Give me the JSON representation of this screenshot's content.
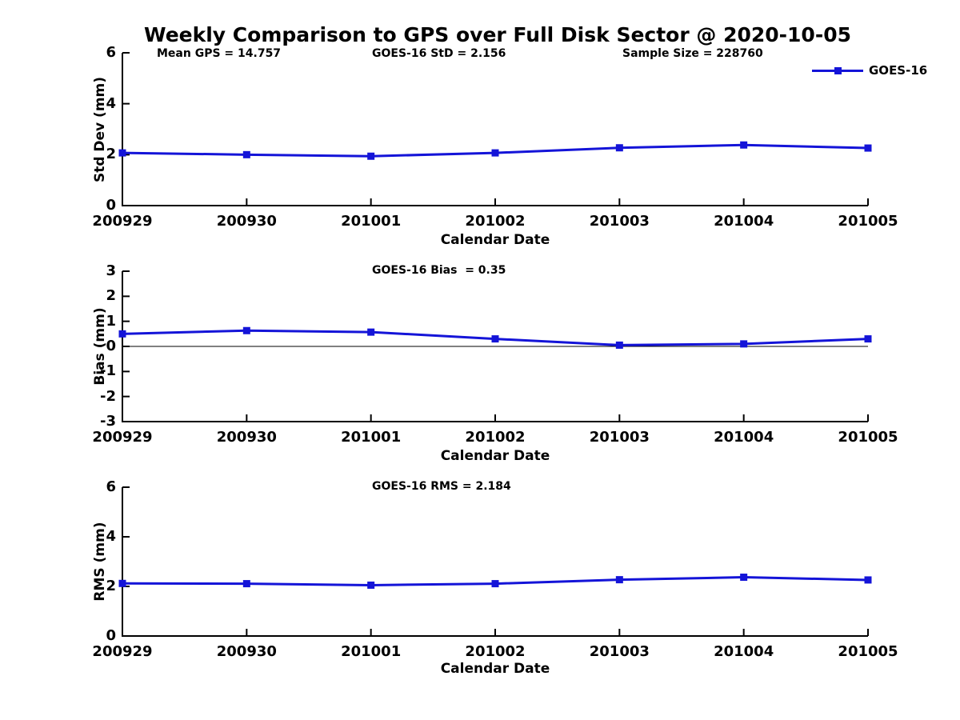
{
  "page": {
    "title": "Weekly Comparison to GPS over Full Disk Sector @ 2020-10-05"
  },
  "colors": {
    "series": "#1414d8",
    "axis": "#000000",
    "background": "#ffffff",
    "text": "#000000"
  },
  "legend": {
    "label": "GOES-16",
    "position": "top-right"
  },
  "chart_data": [
    {
      "type": "line",
      "annotations": [
        "Mean GPS = 14.757",
        "GOES-16 StD = 2.156",
        "Sample Size = 228760"
      ],
      "xlabel": "Calendar Date",
      "ylabel": "Std Dev (mm)",
      "categories": [
        "200929",
        "200930",
        "201001",
        "201002",
        "201003",
        "201004",
        "201005"
      ],
      "series": [
        {
          "name": "GOES-16",
          "values": [
            2.07,
            2.0,
            1.94,
            2.07,
            2.27,
            2.38,
            2.26
          ]
        }
      ],
      "ylim": [
        0,
        6
      ],
      "yticks": [
        0,
        2,
        4,
        6
      ],
      "grid": false,
      "zero_line": false
    },
    {
      "type": "line",
      "annotations": [
        "GOES-16 Bias  = 0.35"
      ],
      "xlabel": "Calendar Date",
      "ylabel": "Bias (mm)",
      "categories": [
        "200929",
        "200930",
        "201001",
        "201002",
        "201003",
        "201004",
        "201005"
      ],
      "series": [
        {
          "name": "GOES-16",
          "values": [
            0.5,
            0.63,
            0.57,
            0.3,
            0.05,
            0.1,
            0.3
          ]
        }
      ],
      "ylim": [
        -3,
        3
      ],
      "yticks": [
        -3,
        -2,
        -1,
        0,
        1,
        2,
        3
      ],
      "grid": false,
      "zero_line": true
    },
    {
      "type": "line",
      "annotations": [
        "GOES-16 RMS = 2.184"
      ],
      "xlabel": "Calendar Date",
      "ylabel": "RMS (mm)",
      "categories": [
        "200929",
        "200930",
        "201001",
        "201002",
        "201003",
        "201004",
        "201005"
      ],
      "series": [
        {
          "name": "GOES-16",
          "values": [
            2.12,
            2.11,
            2.05,
            2.11,
            2.27,
            2.37,
            2.26
          ]
        }
      ],
      "ylim": [
        0,
        6
      ],
      "yticks": [
        0,
        2,
        4,
        6
      ],
      "grid": false,
      "zero_line": false
    }
  ]
}
